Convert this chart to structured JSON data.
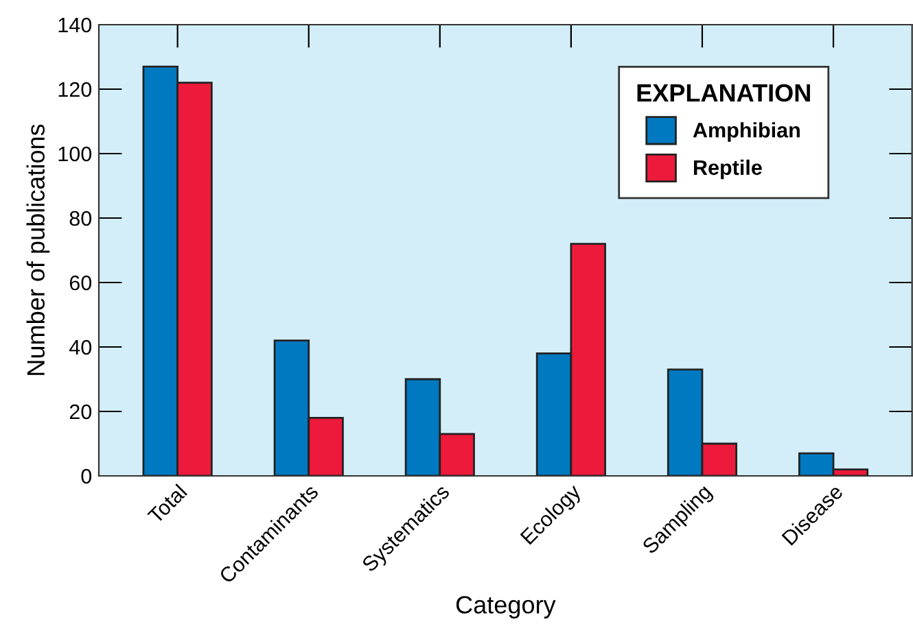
{
  "chart_data": {
    "type": "bar",
    "xlabel": "Category",
    "ylabel": "Number of publications",
    "legend_title": "EXPLANATION",
    "categories": [
      "Total",
      "Contaminants",
      "Systematics",
      "Ecology",
      "Sampling",
      "Disease"
    ],
    "series": [
      {
        "name": "Amphibian",
        "color": "#0079c1",
        "values": [
          127,
          42,
          30,
          38,
          33,
          7
        ]
      },
      {
        "name": "Reptile",
        "color": "#ed1a3b",
        "values": [
          122,
          18,
          13,
          72,
          10,
          2
        ]
      }
    ],
    "ylim": [
      0,
      140
    ],
    "yticks": [
      0,
      20,
      40,
      60,
      80,
      100,
      120,
      140
    ],
    "grid": false,
    "legend": "top right"
  }
}
